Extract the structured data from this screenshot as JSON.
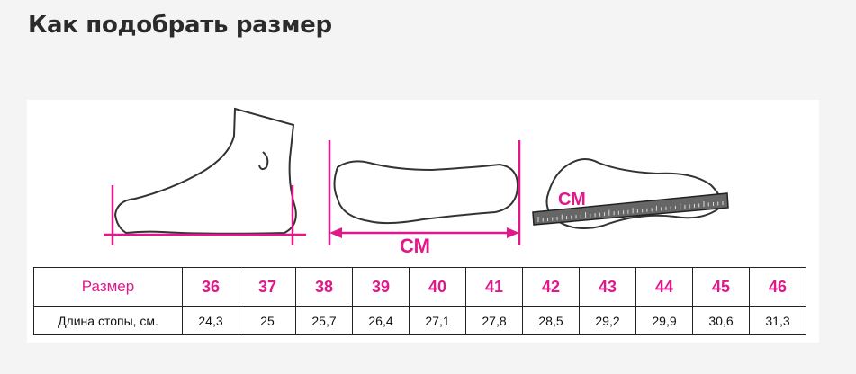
{
  "page_title": "Как подобрать размер",
  "illustration": {
    "unit_label_1": "СМ",
    "unit_label_2": "СМ",
    "accent_color": "#e0198a"
  },
  "size_table": {
    "row_headers": [
      "Размер",
      "Длина стопы, см."
    ],
    "sizes": [
      "36",
      "37",
      "38",
      "39",
      "40",
      "41",
      "42",
      "43",
      "44",
      "45",
      "46"
    ],
    "foot_lengths": [
      "24,3",
      "25",
      "25,7",
      "26,4",
      "27,1",
      "27,8",
      "28,5",
      "29,2",
      "29,9",
      "30,6",
      "31,3"
    ]
  }
}
